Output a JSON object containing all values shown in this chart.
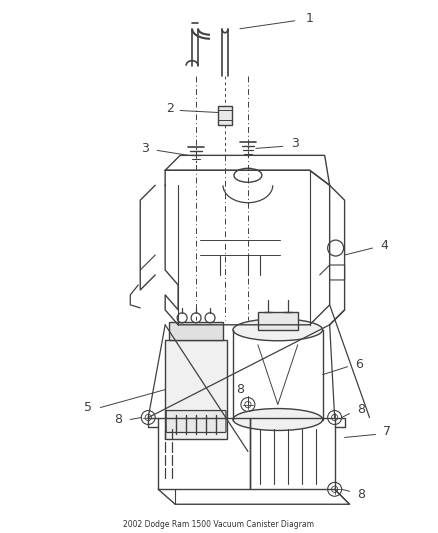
{
  "bg_color": "#ffffff",
  "line_color": "#404040",
  "fig_width": 4.38,
  "fig_height": 5.33,
  "dpi": 100
}
